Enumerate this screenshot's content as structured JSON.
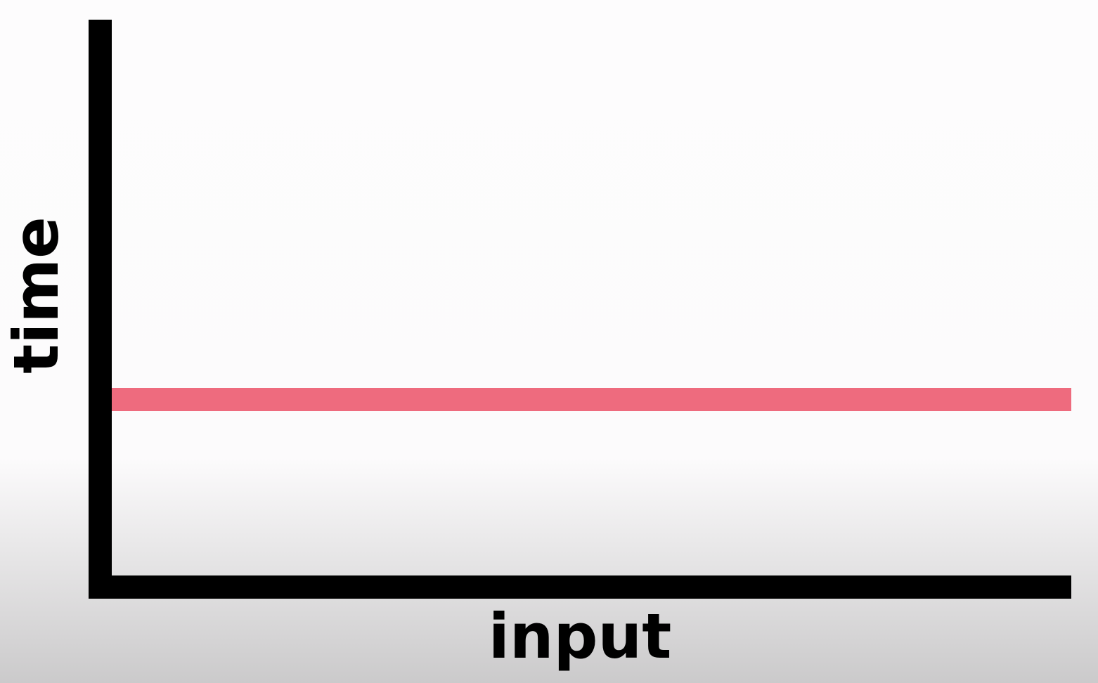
{
  "chart_data": {
    "type": "line",
    "x_label": "input",
    "y_label": "time",
    "line_color": "#ee6b7e",
    "axis_color": "#000000"
  }
}
